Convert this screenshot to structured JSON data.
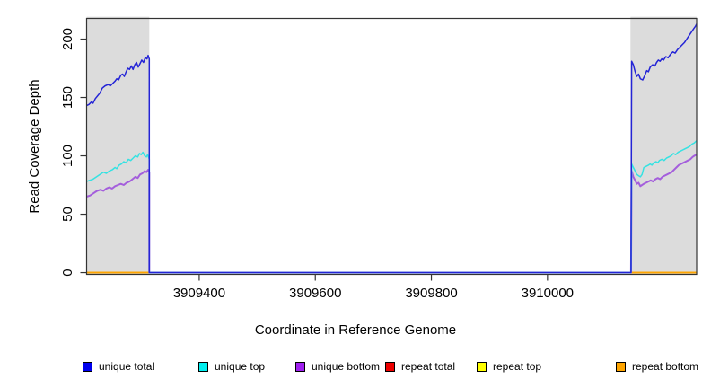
{
  "figure": {
    "xlabel": "Coordinate in Reference Genome",
    "ylabel": "Read Coverage Depth"
  },
  "legend": {
    "items": [
      {
        "label": "unique total",
        "color": "#0000EE"
      },
      {
        "label": "unique top",
        "color": "#00EEEE"
      },
      {
        "label": "unique bottom",
        "color": "#A020F0"
      },
      {
        "label": "repeat total",
        "color": "#EE0000"
      },
      {
        "label": "repeat top",
        "color": "#FFFF00"
      },
      {
        "label": "repeat bottom",
        "color": "#FFA500"
      }
    ]
  },
  "colors": {
    "shaded_region": "#DCDCDC",
    "plot_border": "#333333",
    "background": "#FFFFFF"
  },
  "chart_data": {
    "type": "line",
    "title": "",
    "xlabel": "Coordinate in Reference Genome",
    "ylabel": "Read Coverage Depth",
    "xlim": [
      3909206,
      3910257
    ],
    "ylim": [
      -1.5,
      217.7
    ],
    "x_ticks": [
      3909400,
      3909600,
      3909800,
      3910000
    ],
    "y_ticks": [
      0,
      50,
      100,
      150,
      200
    ],
    "grid": false,
    "legend_position": "bottom",
    "shaded_regions": [
      {
        "x0": 3909206,
        "x1": 3909314
      },
      {
        "x0": 3910143,
        "x1": 3910257
      }
    ],
    "series": [
      {
        "name": "unique total",
        "color": "#2424D6",
        "width": 1.5,
        "points": [
          [
            3909206,
            143
          ],
          [
            3909210,
            144
          ],
          [
            3909214,
            146
          ],
          [
            3909217,
            145
          ],
          [
            3909221,
            149
          ],
          [
            3909226,
            152
          ],
          [
            3909229,
            154
          ],
          [
            3909233,
            158
          ],
          [
            3909238,
            160
          ],
          [
            3909243,
            161
          ],
          [
            3909247,
            160
          ],
          [
            3909251,
            162
          ],
          [
            3909255,
            164
          ],
          [
            3909258,
            166
          ],
          [
            3909261,
            165
          ],
          [
            3909265,
            169
          ],
          [
            3909268,
            170
          ],
          [
            3909271,
            168
          ],
          [
            3909274,
            172
          ],
          [
            3909277,
            175
          ],
          [
            3909280,
            174
          ],
          [
            3909283,
            177
          ],
          [
            3909286,
            174
          ],
          [
            3909289,
            178
          ],
          [
            3909292,
            180
          ],
          [
            3909295,
            176
          ],
          [
            3909298,
            179
          ],
          [
            3909301,
            182
          ],
          [
            3909304,
            180
          ],
          [
            3909307,
            184
          ],
          [
            3909310,
            183
          ],
          [
            3909312,
            186
          ],
          [
            3909314,
            183
          ],
          [
            3909314,
            0
          ],
          [
            3910144,
            0
          ],
          [
            3910145,
            181
          ],
          [
            3910148,
            178
          ],
          [
            3910151,
            172
          ],
          [
            3910154,
            168
          ],
          [
            3910157,
            170
          ],
          [
            3910160,
            166
          ],
          [
            3910164,
            165
          ],
          [
            3910167,
            168
          ],
          [
            3910171,
            173
          ],
          [
            3910174,
            172
          ],
          [
            3910177,
            176
          ],
          [
            3910181,
            178
          ],
          [
            3910185,
            177
          ],
          [
            3910188,
            180
          ],
          [
            3910191,
            182
          ],
          [
            3910194,
            181
          ],
          [
            3910197,
            183
          ],
          [
            3910200,
            182
          ],
          [
            3910204,
            185
          ],
          [
            3910208,
            184
          ],
          [
            3910212,
            187
          ],
          [
            3910216,
            189
          ],
          [
            3910220,
            188
          ],
          [
            3910224,
            191
          ],
          [
            3910228,
            193
          ],
          [
            3910232,
            195
          ],
          [
            3910236,
            197
          ],
          [
            3910240,
            200
          ],
          [
            3910244,
            203
          ],
          [
            3910248,
            206
          ],
          [
            3910252,
            209
          ],
          [
            3910255,
            211
          ],
          [
            3910257,
            213
          ]
        ]
      },
      {
        "name": "unique top",
        "color": "#35E2E2",
        "width": 1.5,
        "points": [
          [
            3909206,
            78
          ],
          [
            3909211,
            79
          ],
          [
            3909217,
            80
          ],
          [
            3909223,
            82
          ],
          [
            3909229,
            84
          ],
          [
            3909235,
            86
          ],
          [
            3909240,
            85
          ],
          [
            3909245,
            87
          ],
          [
            3909250,
            88
          ],
          [
            3909255,
            90
          ],
          [
            3909258,
            89
          ],
          [
            3909262,
            92
          ],
          [
            3909266,
            93
          ],
          [
            3909270,
            95
          ],
          [
            3909274,
            94
          ],
          [
            3909278,
            97
          ],
          [
            3909282,
            96
          ],
          [
            3909286,
            98
          ],
          [
            3909290,
            100
          ],
          [
            3909294,
            99
          ],
          [
            3909297,
            102
          ],
          [
            3909300,
            101
          ],
          [
            3909303,
            103
          ],
          [
            3909306,
            100
          ],
          [
            3909309,
            99
          ],
          [
            3909311,
            101
          ],
          [
            3909314,
            97
          ],
          [
            3909314,
            0
          ],
          [
            3910144,
            0
          ],
          [
            3910145,
            93
          ],
          [
            3910148,
            90
          ],
          [
            3910151,
            87
          ],
          [
            3910154,
            84
          ],
          [
            3910157,
            83
          ],
          [
            3910160,
            82
          ],
          [
            3910163,
            84
          ],
          [
            3910166,
            90
          ],
          [
            3910170,
            91
          ],
          [
            3910174,
            92
          ],
          [
            3910177,
            93
          ],
          [
            3910180,
            92
          ],
          [
            3910183,
            94
          ],
          [
            3910187,
            95
          ],
          [
            3910190,
            94
          ],
          [
            3910193,
            96
          ],
          [
            3910197,
            97
          ],
          [
            3910201,
            96
          ],
          [
            3910205,
            98
          ],
          [
            3910209,
            99
          ],
          [
            3910213,
            100
          ],
          [
            3910217,
            102
          ],
          [
            3910221,
            101
          ],
          [
            3910225,
            103
          ],
          [
            3910229,
            104
          ],
          [
            3910233,
            105
          ],
          [
            3910237,
            106
          ],
          [
            3910241,
            107
          ],
          [
            3910245,
            108
          ],
          [
            3910249,
            110
          ],
          [
            3910253,
            111
          ],
          [
            3910257,
            113
          ]
        ]
      },
      {
        "name": "unique bottom",
        "color": "#A45EDC",
        "width": 2.0,
        "points": [
          [
            3909206,
            65
          ],
          [
            3909212,
            66
          ],
          [
            3909218,
            68
          ],
          [
            3909224,
            70
          ],
          [
            3909230,
            71
          ],
          [
            3909235,
            70
          ],
          [
            3909240,
            72
          ],
          [
            3909245,
            73
          ],
          [
            3909250,
            72
          ],
          [
            3909255,
            74
          ],
          [
            3909260,
            75
          ],
          [
            3909265,
            76
          ],
          [
            3909270,
            75
          ],
          [
            3909275,
            77
          ],
          [
            3909280,
            78
          ],
          [
            3909285,
            80
          ],
          [
            3909290,
            82
          ],
          [
            3909294,
            81
          ],
          [
            3909298,
            84
          ],
          [
            3909302,
            85
          ],
          [
            3909306,
            87
          ],
          [
            3909309,
            86
          ],
          [
            3909312,
            88
          ],
          [
            3909314,
            86
          ],
          [
            3909314,
            0
          ],
          [
            3910144,
            0
          ],
          [
            3910145,
            87
          ],
          [
            3910148,
            82
          ],
          [
            3910151,
            79
          ],
          [
            3910154,
            76
          ],
          [
            3910157,
            77
          ],
          [
            3910160,
            74
          ],
          [
            3910163,
            75
          ],
          [
            3910166,
            76
          ],
          [
            3910170,
            77
          ],
          [
            3910174,
            78
          ],
          [
            3910178,
            79
          ],
          [
            3910182,
            78
          ],
          [
            3910186,
            80
          ],
          [
            3910190,
            81
          ],
          [
            3910194,
            80
          ],
          [
            3910198,
            82
          ],
          [
            3910202,
            83
          ],
          [
            3910206,
            84
          ],
          [
            3910210,
            85
          ],
          [
            3910214,
            86
          ],
          [
            3910218,
            88
          ],
          [
            3910222,
            90
          ],
          [
            3910226,
            92
          ],
          [
            3910230,
            93
          ],
          [
            3910234,
            94
          ],
          [
            3910238,
            95
          ],
          [
            3910242,
            96
          ],
          [
            3910246,
            97
          ],
          [
            3910250,
            99
          ],
          [
            3910253,
            100
          ],
          [
            3910257,
            101
          ]
        ]
      },
      {
        "name": "repeat total",
        "color": "#EE0000",
        "width": 1.5,
        "points": [
          [
            3909206,
            0
          ],
          [
            3910257,
            0
          ]
        ]
      },
      {
        "name": "repeat top",
        "color": "#FFFF00",
        "width": 1.5,
        "points": [
          [
            3909206,
            0
          ],
          [
            3910257,
            0
          ]
        ]
      },
      {
        "name": "repeat bottom",
        "color": "#FFA500",
        "width": 1.8,
        "points": [
          [
            3909206,
            0
          ],
          [
            3910257,
            0
          ]
        ]
      }
    ]
  }
}
